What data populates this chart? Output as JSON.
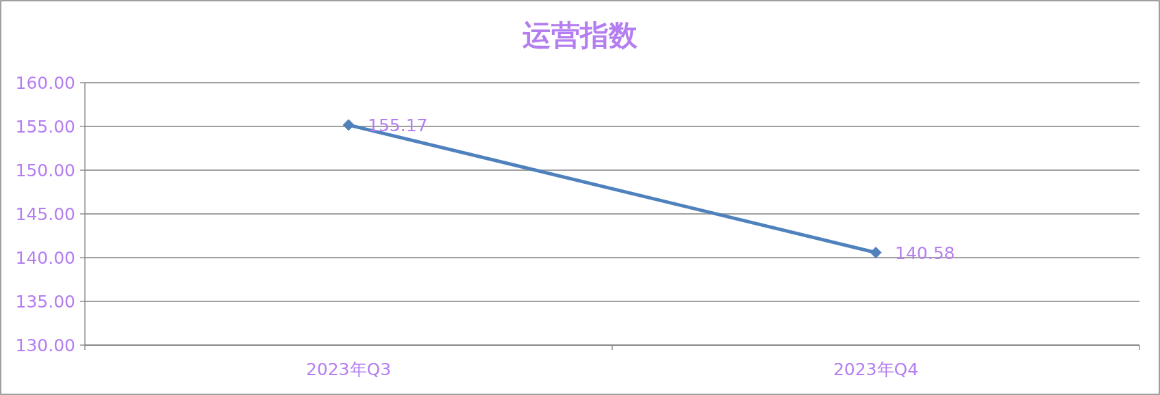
{
  "chart_data": {
    "type": "line",
    "title": "运营指数",
    "categories": [
      "2023年Q3",
      "2023年Q4"
    ],
    "series": [
      {
        "color": "#4f81bd",
        "values": [
          155.17,
          140.58
        ]
      }
    ],
    "ylim": [
      130,
      160
    ],
    "yticks": [
      {
        "value": 130,
        "label": "130.00"
      },
      {
        "value": 135,
        "label": "135.00"
      },
      {
        "value": 140,
        "label": "140.00"
      },
      {
        "value": 145,
        "label": "145.00"
      },
      {
        "value": 150,
        "label": "150.00"
      },
      {
        "value": 155,
        "label": "155.00"
      },
      {
        "value": 160,
        "label": "160.00"
      }
    ],
    "grid": "y",
    "marker": "diamond",
    "data_labels": true
  }
}
